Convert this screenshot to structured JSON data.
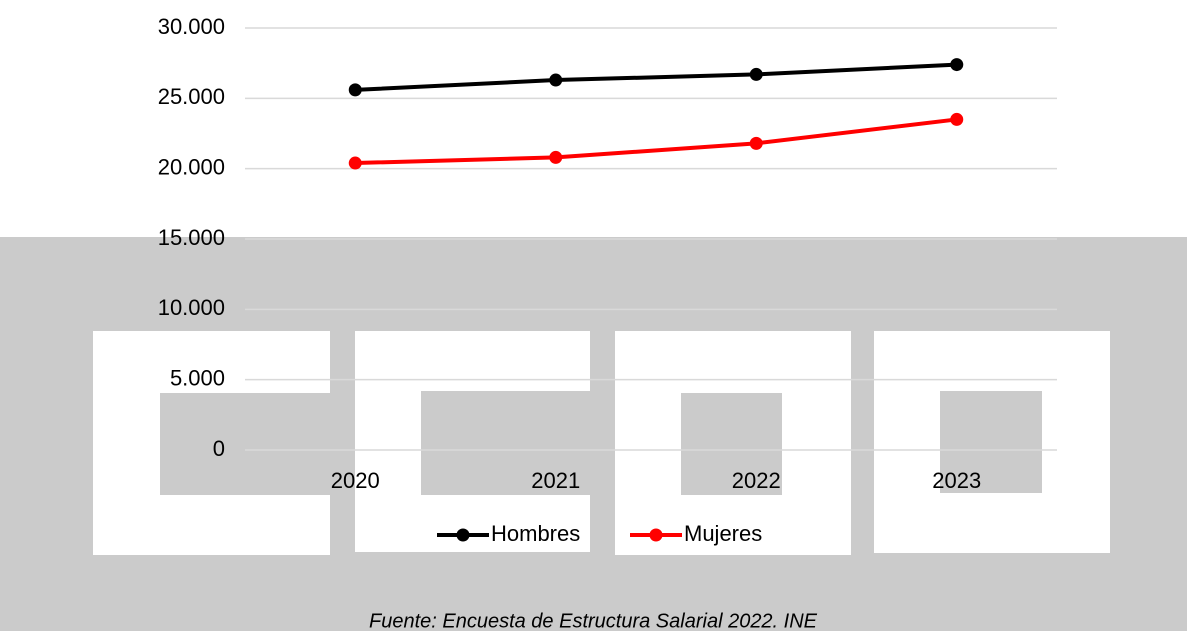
{
  "chart_data": {
    "type": "line",
    "categories": [
      "2020",
      "2021",
      "2022",
      "2023"
    ],
    "series": [
      {
        "name": "Hombres",
        "color": "#000000",
        "values": [
          25600,
          26300,
          26700,
          27400
        ]
      },
      {
        "name": "Mujeres",
        "color": "#ff0000",
        "values": [
          20400,
          20800,
          21800,
          23500
        ]
      }
    ],
    "ylim": [
      0,
      30000
    ],
    "yticks": [
      0,
      {
        "value": 5000,
        "label": "5.000"
      },
      {
        "value": 10000,
        "label": "10.000"
      },
      {
        "value": 15000,
        "label": "15.000"
      },
      {
        "value": 20000,
        "label": "20.000"
      },
      {
        "value": 25000,
        "label": "25.000"
      },
      {
        "value": 30000,
        "label": "30.000"
      }
    ],
    "grid": true,
    "legend": "bottom",
    "source": "Fuente: Encuesta de Estructura Salarial 2022. INE"
  }
}
